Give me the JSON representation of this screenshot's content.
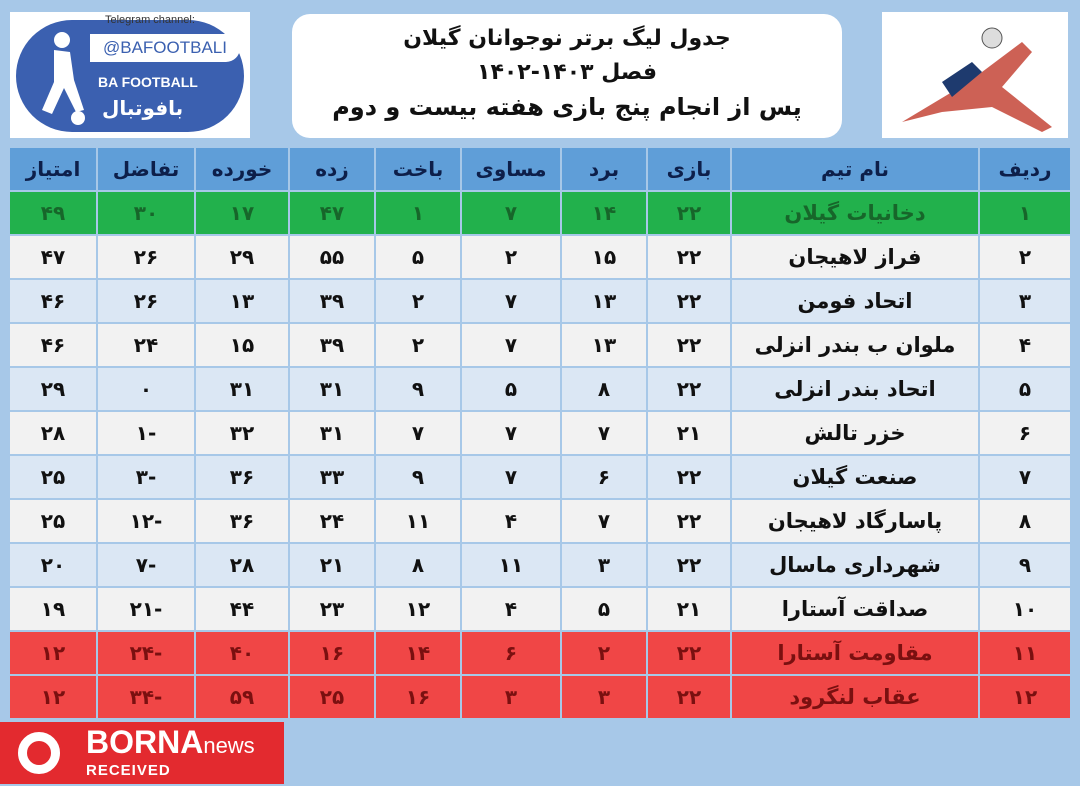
{
  "logo": {
    "telegram_label": "Telegram channel:",
    "handle": "@BAFOOTBALI",
    "brand_en": "BA FOOTBALL",
    "brand_fa": "بافوتبال"
  },
  "title": {
    "line1": "جدول لیگ برتر نوجوانان گیلان",
    "line2": "فصل ۱۴۰۳-۱۴۰۲",
    "line3": "پس از انجام پنج بازی هفته بیست و دوم"
  },
  "colors": {
    "header": "#5f9ed8",
    "promotion": "#22b14c",
    "relegation": "#f04646",
    "background": "#a7c8e8"
  },
  "table": {
    "headers": [
      "ردیف",
      "نام تیم",
      "بازی",
      "برد",
      "مساوی",
      "باخت",
      "زده",
      "خورده",
      "تفاضل",
      "امتیاز"
    ],
    "rows": [
      [
        "۱",
        "دخانیات گیلان",
        "۲۲",
        "۱۴",
        "۷",
        "۱",
        "۴۷",
        "۱۷",
        "۳۰",
        "۴۹"
      ],
      [
        "۲",
        "فراز لاهیجان",
        "۲۲",
        "۱۵",
        "۲",
        "۵",
        "۵۵",
        "۲۹",
        "۲۶",
        "۴۷"
      ],
      [
        "۳",
        "اتحاد فومن",
        "۲۲",
        "۱۳",
        "۷",
        "۲",
        "۳۹",
        "۱۳",
        "۲۶",
        "۴۶"
      ],
      [
        "۴",
        "ملوان ب بندر انزلی",
        "۲۲",
        "۱۳",
        "۷",
        "۲",
        "۳۹",
        "۱۵",
        "۲۴",
        "۴۶"
      ],
      [
        "۵",
        "اتحاد بندر انزلی",
        "۲۲",
        "۸",
        "۵",
        "۹",
        "۳۱",
        "۳۱",
        "۰",
        "۲۹"
      ],
      [
        "۶",
        "خزر تالش",
        "۲۱",
        "۷",
        "۷",
        "۷",
        "۳۱",
        "۳۲",
        "-۱",
        "۲۸"
      ],
      [
        "۷",
        "صنعت گیلان",
        "۲۲",
        "۶",
        "۷",
        "۹",
        "۳۳",
        "۳۶",
        "-۳",
        "۲۵"
      ],
      [
        "۸",
        "پاسارگاد لاهیجان",
        "۲۲",
        "۷",
        "۴",
        "۱۱",
        "۲۴",
        "۳۶",
        "-۱۲",
        "۲۵"
      ],
      [
        "۹",
        "شهرداری ماسال",
        "۲۲",
        "۳",
        "۱۱",
        "۸",
        "۲۱",
        "۲۸",
        "-۷",
        "۲۰"
      ],
      [
        "۱۰",
        "صداقت آستارا",
        "۲۱",
        "۵",
        "۴",
        "۱۲",
        "۲۳",
        "۴۴",
        "-۲۱",
        "۱۹"
      ],
      [
        "۱۱",
        "مقاومت آستارا",
        "۲۲",
        "۲",
        "۶",
        "۱۴",
        "۱۶",
        "۴۰",
        "-۲۴",
        "۱۲"
      ],
      [
        "۱۲",
        "عقاب لنگرود",
        "۲۲",
        "۳",
        "۳",
        "۱۶",
        "۲۵",
        "۵۹",
        "-۳۴",
        "۱۲"
      ]
    ]
  },
  "watermark": {
    "brand": "BORNA",
    "suffix": "news",
    "status": "RECEIVED"
  }
}
